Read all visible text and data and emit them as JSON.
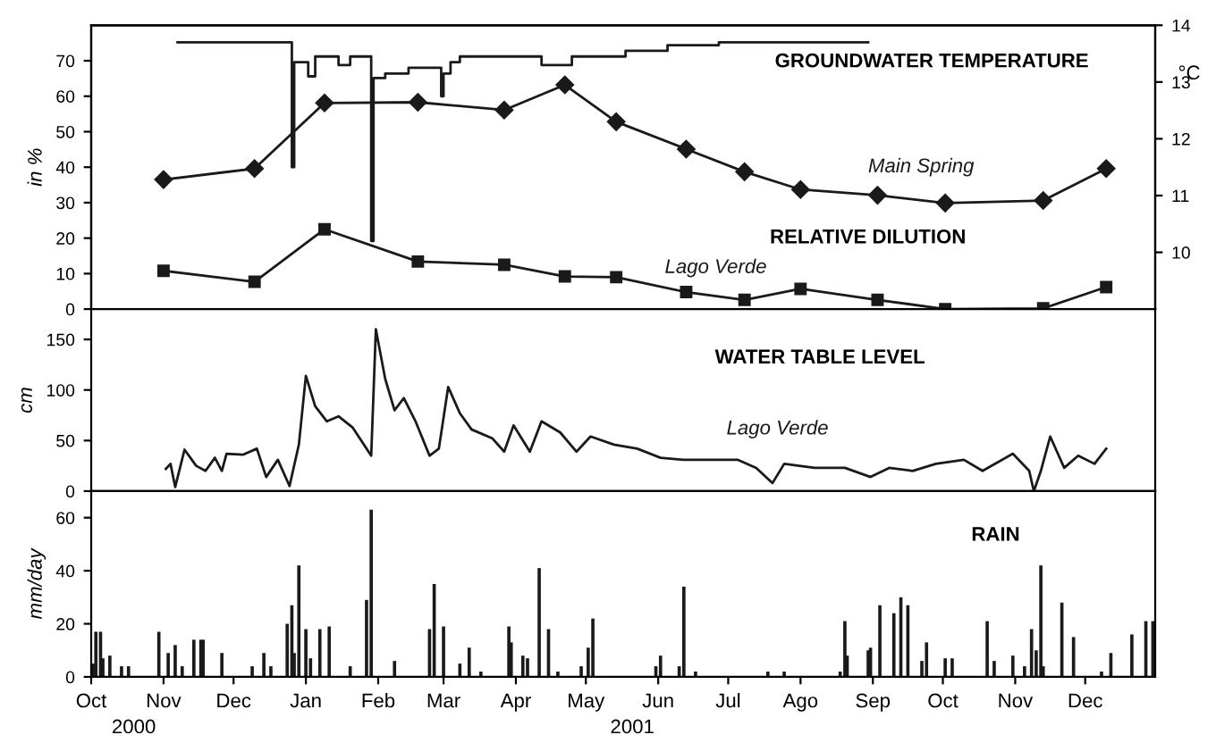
{
  "chart_data": [
    {
      "type": "line",
      "ylabel": "in %",
      "y2label": "°C",
      "grid": false,
      "tick_labels": "y",
      "xlim": [
        "2000-10-01",
        "2001-12-31"
      ],
      "ylim": [
        0,
        80
      ],
      "yticks": [
        0,
        10,
        20,
        30,
        40,
        50,
        60,
        70
      ],
      "y2lim": [
        9,
        14
      ],
      "y2ticks": [
        10,
        11,
        12,
        13,
        14
      ],
      "annotations": [
        "GROUNDWATER TEMPERATURE",
        "RELATIVE DILUTION"
      ],
      "series": [
        {
          "name": "Main Spring",
          "color": "#1a1a1a",
          "marker": "diamond",
          "x": [
            "2000-11-01",
            "2000-12-10",
            "2001-01-09",
            "2001-02-18",
            "2001-03-27",
            "2001-04-22",
            "2001-05-14",
            "2001-06-13",
            "2001-07-08",
            "2001-08-01",
            "2001-09-03",
            "2001-10-02",
            "2001-11-13",
            "2001-12-10"
          ],
          "values": [
            36.5,
            39.6,
            58.1,
            58.3,
            56.1,
            63.2,
            52.8,
            45.1,
            38.7,
            33.7,
            32.1,
            29.9,
            30.6,
            39.6
          ]
        },
        {
          "name": "Lago Verde",
          "color": "#1a1a1a",
          "marker": "square",
          "x": [
            "2000-11-01",
            "2000-12-10",
            "2001-01-09",
            "2001-02-18",
            "2001-03-27",
            "2001-04-22",
            "2001-05-14",
            "2001-06-13",
            "2001-07-08",
            "2001-08-01",
            "2001-09-03",
            "2001-10-02",
            "2001-11-13",
            "2001-12-10"
          ],
          "values": [
            10.8,
            7.7,
            22.5,
            13.4,
            12.5,
            9.2,
            9.0,
            4.8,
            2.6,
            5.7,
            2.6,
            0,
            0.2,
            6.2
          ]
        },
        {
          "type": "step",
          "axis": "y2",
          "color": "#1a1a1a",
          "x": [
            "2000-11-07",
            "2000-12-26",
            "2000-12-27",
            "2001-01-02",
            "2001-01-05",
            "2001-01-15",
            "2001-01-20",
            "2001-01-29",
            "2001-01-30",
            "2001-02-04",
            "2001-02-14",
            "2001-02-28",
            "2001-03-01",
            "2001-03-04",
            "2001-03-08",
            "2001-04-12",
            "2001-04-25",
            "2001-05-18",
            "2001-06-05",
            "2001-06-27",
            "2001-08-30"
          ],
          "values": [
            13.7,
            11.5,
            13.35,
            13.1,
            13.45,
            13.3,
            13.45,
            10.2,
            13.07,
            13.15,
            13.25,
            12.75,
            13.15,
            13.35,
            13.45,
            13.3,
            13.45,
            13.55,
            13.65,
            13.7,
            13.7
          ]
        }
      ]
    },
    {
      "type": "line",
      "ylabel": "cm",
      "grid": false,
      "tick_labels": "y",
      "xlim": [
        "2000-10-01",
        "2001-12-31"
      ],
      "ylim": [
        0,
        180
      ],
      "yticks": [
        0,
        50,
        100,
        150
      ],
      "annotations": [
        "WATER TABLE LEVEL"
      ],
      "series": [
        {
          "name": "Lago Verde",
          "color": "#1a1a1a",
          "x": [
            "2000-11-02",
            "2000-11-04",
            "2000-11-06",
            "2000-11-10",
            "2000-11-15",
            "2000-11-19",
            "2000-11-23",
            "2000-11-26",
            "2000-11-28",
            "2000-12-05",
            "2000-12-11",
            "2000-12-15",
            "2000-12-20",
            "2000-12-25",
            "2000-12-29",
            "2001-01-01",
            "2001-01-05",
            "2001-01-10",
            "2001-01-15",
            "2001-01-21",
            "2001-01-29",
            "2001-01-31",
            "2001-02-04",
            "2001-02-08",
            "2001-02-12",
            "2001-02-17",
            "2001-02-23",
            "2001-02-27",
            "2001-03-03",
            "2001-03-08",
            "2001-03-13",
            "2001-03-22",
            "2001-03-27",
            "2001-03-31",
            "2001-04-07",
            "2001-04-12",
            "2001-04-20",
            "2001-04-27",
            "2001-05-03",
            "2001-05-13",
            "2001-05-23",
            "2001-06-02",
            "2001-06-12",
            "2001-06-25",
            "2001-07-05",
            "2001-07-13",
            "2001-07-20",
            "2001-07-25",
            "2001-08-07",
            "2001-08-20",
            "2001-08-31",
            "2001-09-08",
            "2001-09-18",
            "2001-09-28",
            "2001-10-10",
            "2001-10-18",
            "2001-10-31",
            "2001-11-07",
            "2001-11-09",
            "2001-11-12",
            "2001-11-16",
            "2001-11-22",
            "2001-11-28",
            "2001-12-05",
            "2001-12-10"
          ],
          "values": [
            22,
            27,
            4,
            41,
            25,
            20,
            33,
            20,
            37,
            36,
            42,
            14,
            31,
            5,
            46,
            114,
            84,
            69,
            74,
            63,
            35,
            160,
            111,
            80,
            92,
            69,
            35,
            42,
            103,
            77,
            61,
            52,
            39,
            65,
            39,
            69,
            58,
            39,
            54,
            46,
            42,
            33,
            31,
            31,
            31,
            23,
            8,
            27,
            23,
            23,
            14,
            23,
            20,
            27,
            31,
            20,
            37,
            20,
            0,
            20,
            54,
            23,
            35,
            27,
            42
          ]
        }
      ]
    },
    {
      "type": "bar",
      "ylabel": "mm/day",
      "grid": false,
      "xlim": [
        "2000-10-01",
        "2001-12-31"
      ],
      "xticks": [
        {
          "value": "2000-10-01",
          "label": "Oct"
        },
        {
          "value": "2000-11-01",
          "label": "Nov"
        },
        {
          "value": "2000-12-01",
          "label": "Dec"
        },
        {
          "value": "2001-01-01",
          "label": "Jan"
        },
        {
          "value": "2001-02-01",
          "label": "Feb"
        },
        {
          "value": "2001-03-01",
          "label": "Mar"
        },
        {
          "value": "2001-04-01",
          "label": "Apr"
        },
        {
          "value": "2001-05-01",
          "label": "May"
        },
        {
          "value": "2001-06-01",
          "label": "Jun"
        },
        {
          "value": "2001-07-01",
          "label": "Jul"
        },
        {
          "value": "2001-08-01",
          "label": "Ago"
        },
        {
          "value": "2001-09-01",
          "label": "Sep"
        },
        {
          "value": "2001-10-01",
          "label": "Oct"
        },
        {
          "value": "2001-11-01",
          "label": "Nov"
        },
        {
          "value": "2001-12-01",
          "label": "Dec"
        }
      ],
      "ylim": [
        0,
        70
      ],
      "yticks": [
        0,
        20,
        40,
        60
      ],
      "annotations": [
        "RAIN",
        "2000",
        "2001"
      ],
      "series": [
        {
          "color": "#1a1a1a",
          "x": [
            "2000-10-02",
            "2000-10-03",
            "2000-10-05",
            "2000-10-06",
            "2000-10-09",
            "2000-10-14",
            "2000-10-17",
            "2000-10-30",
            "2000-11-03",
            "2000-11-06",
            "2000-11-09",
            "2000-11-14",
            "2000-11-17",
            "2000-11-18",
            "2000-11-26",
            "2000-12-09",
            "2000-12-14",
            "2000-12-17",
            "2000-12-24",
            "2000-12-26",
            "2000-12-27",
            "2000-12-29",
            "2001-01-01",
            "2001-01-03",
            "2001-01-07",
            "2001-01-11",
            "2001-01-20",
            "2001-01-27",
            "2001-01-29",
            "2001-02-08",
            "2001-02-23",
            "2001-02-25",
            "2001-03-01",
            "2001-03-08",
            "2001-03-12",
            "2001-03-17",
            "2001-03-29",
            "2001-03-30",
            "2001-04-04",
            "2001-04-06",
            "2001-04-11",
            "2001-04-15",
            "2001-04-19",
            "2001-04-29",
            "2001-05-02",
            "2001-05-04",
            "2001-05-31",
            "2001-06-02",
            "2001-06-10",
            "2001-06-12",
            "2001-06-17",
            "2001-07-18",
            "2001-07-25",
            "2001-08-18",
            "2001-08-20",
            "2001-08-21",
            "2001-08-30",
            "2001-08-31",
            "2001-09-04",
            "2001-09-10",
            "2001-09-13",
            "2001-09-16",
            "2001-09-22",
            "2001-09-24",
            "2001-10-02",
            "2001-10-05",
            "2001-10-20",
            "2001-10-23",
            "2001-10-31",
            "2001-11-05",
            "2001-11-08",
            "2001-11-10",
            "2001-11-12",
            "2001-11-13",
            "2001-11-21",
            "2001-11-26",
            "2001-12-08",
            "2001-12-12",
            "2001-12-21",
            "2001-12-27",
            "2001-12-30"
          ],
          "values": [
            5,
            17,
            17,
            7,
            8,
            4,
            4,
            17,
            9,
            12,
            4,
            14,
            14,
            14,
            9,
            4,
            9,
            4,
            20,
            27,
            9,
            42,
            18,
            7,
            18,
            19,
            4,
            29,
            63,
            6,
            18,
            35,
            19,
            5,
            11,
            2,
            19,
            13,
            8,
            7,
            41,
            18,
            2,
            4,
            11,
            22,
            4,
            8,
            4,
            34,
            2,
            2,
            2,
            2,
            21,
            8,
            10,
            11,
            27,
            24,
            30,
            27,
            6,
            13,
            7,
            7,
            21,
            6,
            8,
            4,
            18,
            10,
            42,
            4,
            28,
            15,
            2,
            9,
            16,
            21,
            21
          ]
        }
      ]
    }
  ]
}
